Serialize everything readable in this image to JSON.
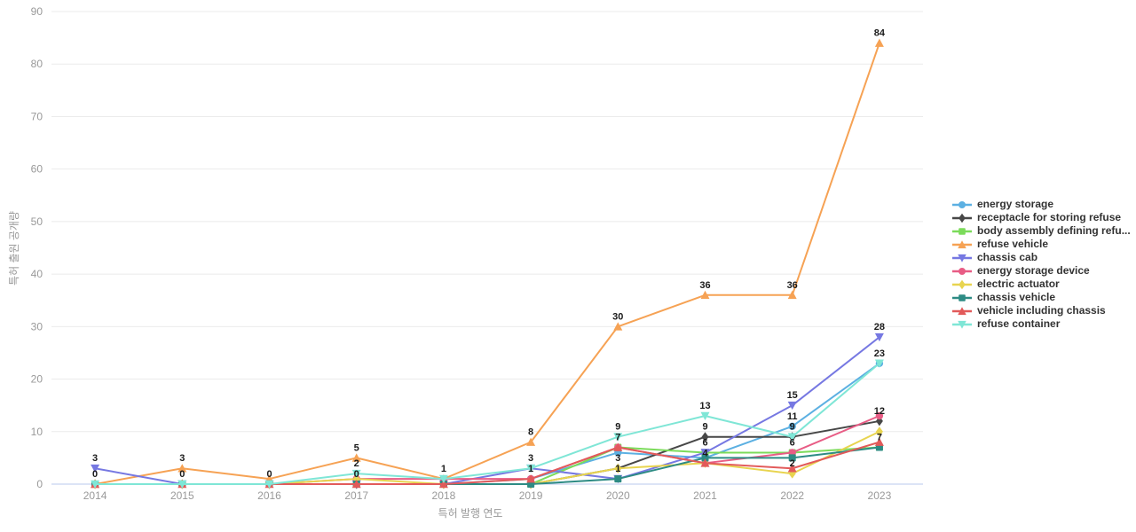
{
  "chart_data": {
    "type": "line",
    "title": "",
    "xlabel": "특허 발행 연도",
    "ylabel": "특허 출원 공개량",
    "categories": [
      "2014",
      "2015",
      "2016",
      "2017",
      "2018",
      "2019",
      "2020",
      "2021",
      "2022",
      "2023"
    ],
    "ylim": [
      0,
      90
    ],
    "ytick_step": 10,
    "grid": true,
    "legend_position": "right",
    "series": [
      {
        "name": "energy storage",
        "color": "#5CB0E2",
        "symbol": "circle",
        "values": [
          0,
          0,
          0,
          0,
          0,
          1,
          6,
          5,
          11,
          23
        ],
        "labels": [
          "0",
          "0",
          "0",
          "0",
          null,
          null,
          null,
          null,
          "11",
          "23"
        ]
      },
      {
        "name": "receptacle for storing refuse",
        "color": "#474747",
        "symbol": "diamond",
        "values": [
          0,
          0,
          0,
          0,
          0,
          0,
          3,
          9,
          9,
          12
        ],
        "labels": [
          null,
          null,
          null,
          null,
          null,
          null,
          null,
          "9",
          null,
          "12"
        ]
      },
      {
        "name": "body assembly defining refu...",
        "color": "#7BDB5A",
        "symbol": "square",
        "values": [
          0,
          0,
          0,
          0,
          0,
          0,
          7,
          6,
          6,
          7
        ],
        "labels": [
          null,
          null,
          null,
          null,
          null,
          null,
          null,
          "6",
          null,
          null
        ]
      },
      {
        "name": "refuse vehicle",
        "color": "#F6A254",
        "symbol": "triangle",
        "values": [
          0,
          3,
          1,
          5,
          1,
          8,
          30,
          36,
          36,
          84
        ],
        "labels": [
          null,
          "3",
          null,
          "5",
          null,
          "8",
          "30",
          "36",
          "36",
          "84"
        ]
      },
      {
        "name": "chassis cab",
        "color": "#7678E2",
        "symbol": "triangle-down",
        "values": [
          3,
          0,
          0,
          0,
          0,
          3,
          1,
          6,
          15,
          28
        ],
        "labels": [
          "3",
          null,
          null,
          null,
          null,
          null,
          null,
          null,
          "15",
          "28"
        ]
      },
      {
        "name": "energy storage device",
        "color": "#E85C85",
        "symbol": "circle",
        "values": [
          0,
          0,
          0,
          1,
          1,
          1,
          7,
          4,
          6,
          13
        ],
        "labels": [
          null,
          null,
          null,
          null,
          null,
          null,
          null,
          null,
          "6",
          null
        ]
      },
      {
        "name": "electric actuator",
        "color": "#E8D44F",
        "symbol": "diamond",
        "values": [
          0,
          0,
          0,
          1,
          0,
          0,
          3,
          4,
          2,
          10
        ],
        "labels": [
          null,
          null,
          null,
          null,
          null,
          null,
          "3",
          null,
          "2",
          null
        ]
      },
      {
        "name": "chassis vehicle",
        "color": "#2D8B84",
        "symbol": "square",
        "values": [
          0,
          0,
          0,
          0,
          0,
          0,
          1,
          5,
          5,
          7
        ],
        "labels": [
          null,
          null,
          null,
          null,
          null,
          null,
          "1",
          null,
          null,
          "7"
        ]
      },
      {
        "name": "vehicle including chassis",
        "color": "#E25A5A",
        "symbol": "triangle",
        "values": [
          0,
          0,
          0,
          0,
          0,
          1,
          7,
          4,
          3,
          8
        ],
        "labels": [
          null,
          null,
          null,
          null,
          null,
          "1",
          "7",
          "4",
          null,
          null
        ]
      },
      {
        "name": "refuse container",
        "color": "#7FE6D6",
        "symbol": "triangle-down",
        "values": [
          0,
          0,
          0,
          2,
          1,
          3,
          9,
          13,
          9,
          23
        ],
        "labels": [
          null,
          null,
          null,
          "2",
          "1",
          "3",
          "9",
          "13",
          "9",
          null
        ]
      }
    ]
  },
  "style": {
    "grid_color": "#EBEBEB",
    "zero_line_color": "#B9C9EC",
    "tick_label_color": "#999999",
    "axis_name_color": "#999999",
    "value_label_color": "#1A1A1A",
    "legend_text_color": "#333333",
    "background": "#FFFFFF"
  }
}
